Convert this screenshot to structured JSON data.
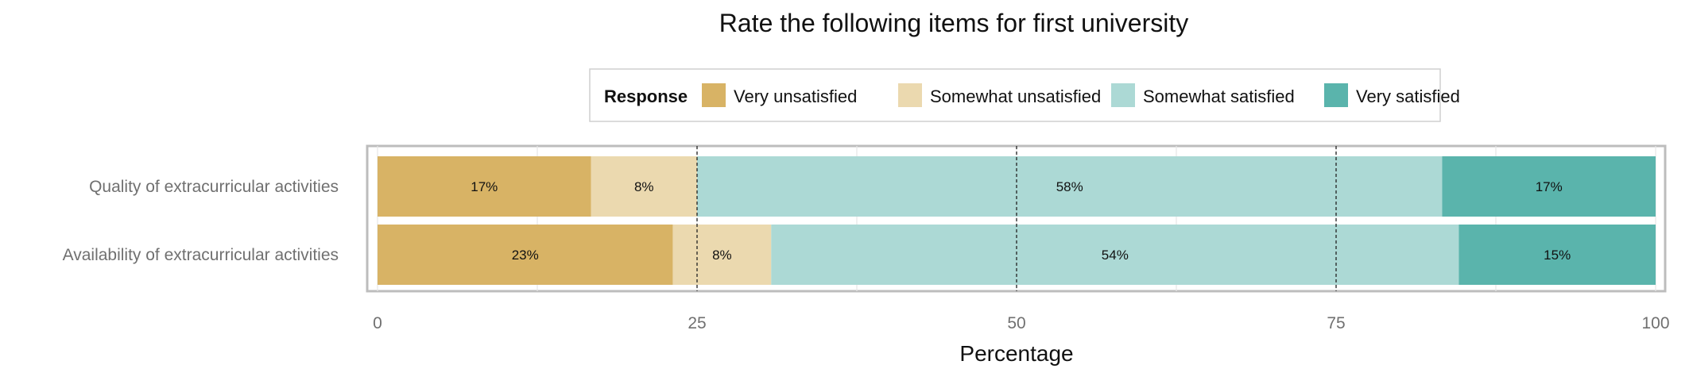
{
  "chart_data": {
    "type": "bar",
    "orientation": "horizontal",
    "stacked": true,
    "title": "Rate the following items for first university",
    "xlabel": "Percentage",
    "ylabel": "",
    "xlim": [
      0,
      100
    ],
    "x_ticks": [
      0,
      25,
      50,
      75,
      100
    ],
    "reference_lines": [
      25,
      50,
      75
    ],
    "grid": true,
    "legend": {
      "title": "Response",
      "position": "top"
    },
    "categories": [
      "Quality of extracurricular activities",
      "Availability of extracurricular activities"
    ],
    "series": [
      {
        "name": "Very unsatisfied",
        "color": "#D8B365",
        "values": [
          16.7,
          23.1
        ],
        "labels": [
          "17%",
          "23%"
        ]
      },
      {
        "name": "Somewhat unsatisfied",
        "color": "#EBD9AF",
        "values": [
          8.3,
          7.7
        ],
        "labels": [
          "8%",
          "8%"
        ]
      },
      {
        "name": "Somewhat satisfied",
        "color": "#ACD9D5",
        "values": [
          58.3,
          53.8
        ],
        "labels": [
          "58%",
          "54%"
        ]
      },
      {
        "name": "Very satisfied",
        "color": "#5AB4AC",
        "values": [
          16.7,
          15.4
        ],
        "labels": [
          "17%",
          "15%"
        ]
      }
    ]
  }
}
